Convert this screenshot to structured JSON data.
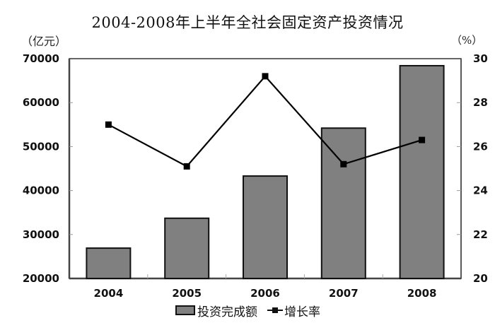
{
  "chart_data": {
    "type": "bar",
    "title": "2004-2008年上半年全社会固定资产投资情况",
    "categories": [
      "2004",
      "2005",
      "2006",
      "2007",
      "2008"
    ],
    "series": [
      {
        "name": "投资完成额",
        "type": "bar",
        "axis": "left",
        "color": "#808080",
        "values": [
          26900,
          33700,
          43300,
          54200,
          68400
        ]
      },
      {
        "name": "增长率",
        "type": "line",
        "axis": "right",
        "color": "#000000",
        "marker": "square",
        "values": [
          27.0,
          25.1,
          29.2,
          25.2,
          26.3
        ]
      }
    ],
    "ylabel": "（亿元）",
    "ylabel_right": "（%）",
    "ylim": [
      20000,
      70000
    ],
    "ylim_right": [
      20,
      30
    ],
    "yticks": [
      "20000",
      "30000",
      "40000",
      "50000",
      "60000",
      "70000"
    ],
    "yticks_right": [
      "20",
      "22",
      "24",
      "26",
      "28",
      "30"
    ],
    "grid": false,
    "legend_position": "bottom"
  },
  "labels": {
    "title": "2004-2008年上半年全社会固定资产投资情况",
    "unit_left": "（亿元）",
    "unit_right": "（%）",
    "legend_bar": "投资完成额",
    "legend_line": "增长率"
  }
}
